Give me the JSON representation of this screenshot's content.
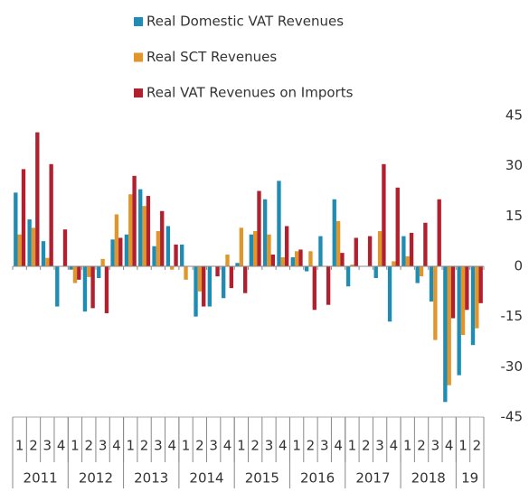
{
  "chart_data": {
    "type": "bar",
    "series": [
      {
        "name": "Real Domestic VAT Revenues",
        "color": "#1f8cb4",
        "values": [
          22,
          14,
          7.5,
          -12,
          -1,
          -13.5,
          -3.5,
          8,
          9.5,
          23,
          6,
          12,
          6.5,
          -15,
          -12,
          -9.5,
          1,
          9.5,
          20,
          25.5,
          2.7,
          -1.5,
          9,
          20,
          -6,
          0,
          -3.5,
          -16.5,
          9,
          -5,
          -10.5,
          -40.5,
          -32.5,
          -23.5
        ]
      },
      {
        "name": "Real SCT Revenues",
        "color": "#e0962a",
        "values": [
          9.5,
          11.5,
          2.5,
          0,
          -5,
          -3.2,
          2.2,
          15.5,
          21.5,
          18,
          10.5,
          -1,
          -4,
          -7.5,
          0,
          3.5,
          11.5,
          10.5,
          9.5,
          2.7,
          4.5,
          4.5,
          0,
          13.5,
          0.5,
          0,
          10.5,
          1.5,
          3,
          -3,
          -22,
          -35.5,
          -20.5,
          -18.5
        ]
      },
      {
        "name": "Real VAT  Revenues on Imports",
        "color": "#b0202e",
        "values": [
          29,
          40,
          30.5,
          11,
          -4,
          -12.5,
          -14,
          8.5,
          27,
          21,
          16.5,
          6.5,
          0,
          -12,
          -3,
          -6.5,
          -8,
          22.5,
          3.5,
          12,
          5,
          -13,
          -11.5,
          4,
          8.5,
          9,
          30.5,
          23.5,
          10,
          13,
          20,
          -15.5,
          -13,
          -11
        ]
      }
    ],
    "categories": [
      "1",
      "2",
      "3",
      "4",
      "1",
      "2",
      "3",
      "4",
      "1",
      "2",
      "3",
      "4",
      "1",
      "2",
      "3",
      "4",
      "1",
      "2",
      "3",
      "4",
      "1",
      "2",
      "3",
      "4",
      "1",
      "2",
      "3",
      "4",
      "1",
      "2",
      "3",
      "4",
      "1",
      "2"
    ],
    "year_labels": [
      "2011",
      "2012",
      "2013",
      "2014",
      "2015",
      "2016",
      "2017",
      "2018",
      "19"
    ],
    "ylim": [
      -45,
      45
    ],
    "yticks": [
      45,
      30,
      15,
      0,
      -15,
      -30,
      -45
    ]
  }
}
